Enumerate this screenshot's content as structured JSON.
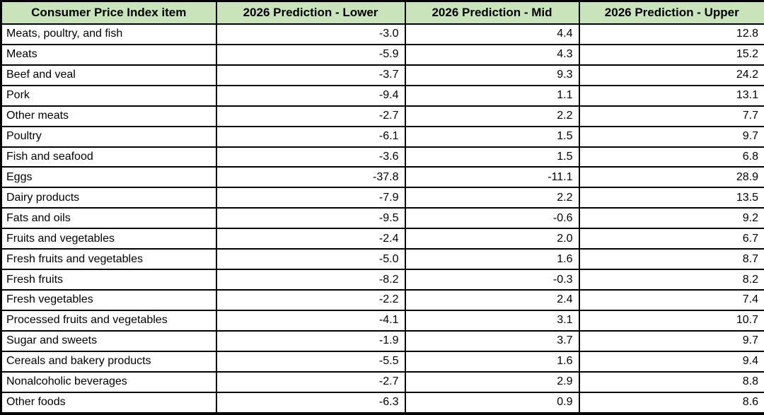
{
  "colors": {
    "header_bg": "#c9e3bb",
    "border": "#000000",
    "row_bg": "#ffffff",
    "text": "#000000"
  },
  "chart_data": {
    "type": "table",
    "columns": [
      "Consumer Price Index item",
      "2026 Prediction - Lower",
      "2026 Prediction - Mid",
      "2026 Prediction - Upper"
    ],
    "rows": [
      [
        "Meats, poultry, and fish",
        "-3.0",
        "4.4",
        "12.8"
      ],
      [
        "Meats",
        "-5.9",
        "4.3",
        "15.2"
      ],
      [
        "Beef and veal",
        "-3.7",
        "9.3",
        "24.2"
      ],
      [
        "Pork",
        "-9.4",
        "1.1",
        "13.1"
      ],
      [
        "Other meats",
        "-2.7",
        "2.2",
        "7.7"
      ],
      [
        "Poultry",
        "-6.1",
        "1.5",
        "9.7"
      ],
      [
        "Fish and seafood",
        "-3.6",
        "1.5",
        "6.8"
      ],
      [
        "Eggs",
        "-37.8",
        "-11.1",
        "28.9"
      ],
      [
        "Dairy products",
        "-7.9",
        "2.2",
        "13.5"
      ],
      [
        "Fats and oils",
        "-9.5",
        "-0.6",
        "9.2"
      ],
      [
        "Fruits and vegetables",
        "-2.4",
        "2.0",
        "6.7"
      ],
      [
        "Fresh fruits and vegetables",
        "-5.0",
        "1.6",
        "8.7"
      ],
      [
        "Fresh fruits",
        "-8.2",
        "-0.3",
        "8.2"
      ],
      [
        "Fresh vegetables",
        "-2.2",
        "2.4",
        "7.4"
      ],
      [
        "Processed fruits and vegetables",
        "-4.1",
        "3.1",
        "10.7"
      ],
      [
        "Sugar and sweets",
        "-1.9",
        "3.7",
        "9.7"
      ],
      [
        "Cereals and bakery products",
        "-5.5",
        "1.6",
        "9.4"
      ],
      [
        "Nonalcoholic beverages",
        "-2.7",
        "2.9",
        "8.8"
      ],
      [
        "Other foods",
        "-6.3",
        "0.9",
        "8.6"
      ]
    ]
  }
}
